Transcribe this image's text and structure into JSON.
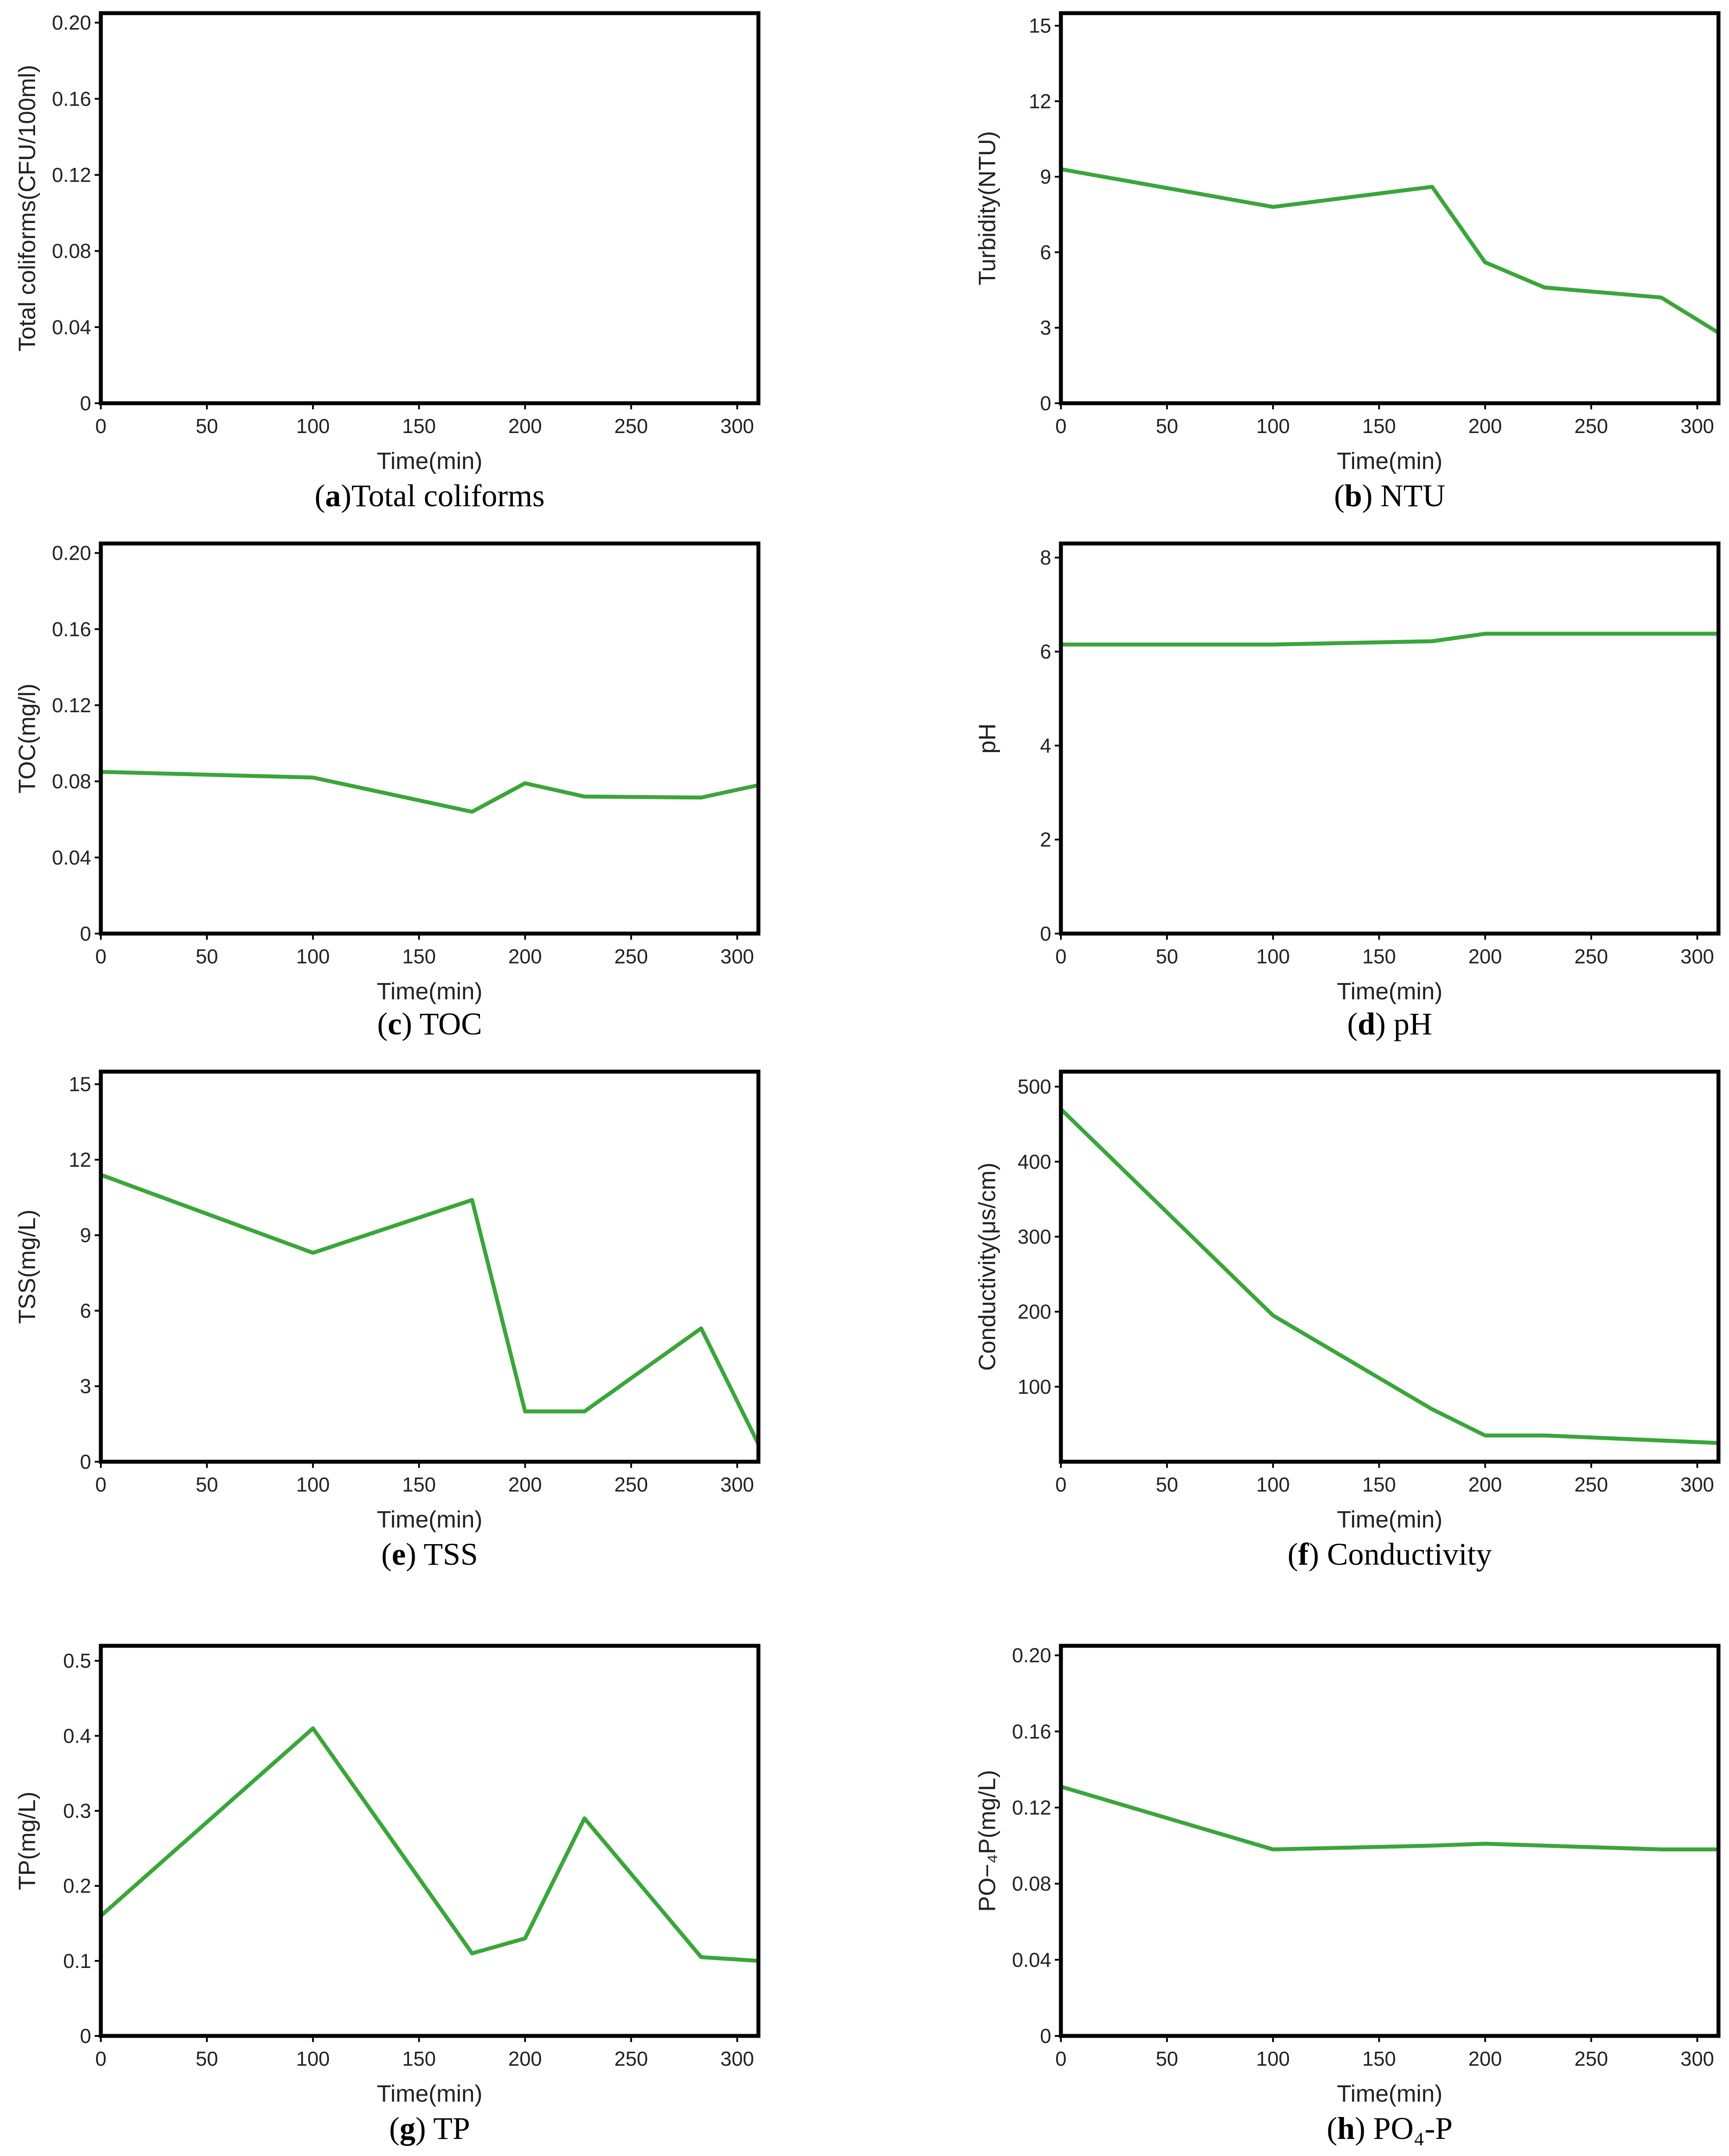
{
  "line_color": "#3aa63a",
  "chart_data": [
    {
      "id": "a",
      "type": "line",
      "caption_letter": "a",
      "caption_text": "Total coliforms",
      "xlabel": "Time(min)",
      "ylabel": "Total coliforms(CFU/100ml)",
      "xlim": [
        0,
        310
      ],
      "ylim": [
        0,
        0.205
      ],
      "xticks": [
        0,
        50,
        100,
        150,
        200,
        250,
        300
      ],
      "yticks": [
        "0",
        "0.04",
        "0.08",
        "0.12",
        "0.16",
        "0.20"
      ],
      "x": [
        0,
        100,
        175,
        200,
        228,
        283,
        310
      ],
      "y": [
        0,
        0,
        0,
        0,
        0,
        0,
        0
      ]
    },
    {
      "id": "b",
      "type": "line",
      "caption_letter": "b",
      "caption_text": " NTU",
      "xlabel": "Time(min)",
      "ylabel": "Turbidity(NTU)",
      "xlim": [
        0,
        310
      ],
      "ylim": [
        0,
        15.5
      ],
      "xticks": [
        0,
        50,
        100,
        150,
        200,
        250,
        300
      ],
      "yticks": [
        "0",
        "3",
        "6",
        "9",
        "12",
        "15"
      ],
      "x": [
        0,
        100,
        175,
        200,
        228,
        283,
        310
      ],
      "y": [
        9.3,
        7.8,
        8.6,
        5.6,
        4.6,
        4.2,
        2.8
      ]
    },
    {
      "id": "c",
      "type": "line",
      "caption_letter": "c",
      "caption_text": " TOC",
      "xlabel": "Time(min)",
      "ylabel": "TOC(mg/l)",
      "xlim": [
        0,
        310
      ],
      "ylim": [
        0,
        0.205
      ],
      "xticks": [
        0,
        50,
        100,
        150,
        200,
        250,
        300
      ],
      "yticks": [
        "0",
        "0.04",
        "0.08",
        "0.12",
        "0.16",
        "0.20"
      ],
      "x": [
        0,
        100,
        175,
        200,
        228,
        283,
        310
      ],
      "y": [
        0.085,
        0.082,
        0.064,
        0.079,
        0.072,
        0.0715,
        0.078
      ]
    },
    {
      "id": "d",
      "type": "line",
      "caption_letter": "d",
      "caption_text": " pH",
      "xlabel": "Time(min)",
      "ylabel": "pH",
      "xlim": [
        0,
        310
      ],
      "ylim": [
        0,
        8.3
      ],
      "xticks": [
        0,
        50,
        100,
        150,
        200,
        250,
        300
      ],
      "yticks": [
        "0",
        "2",
        "4",
        "6",
        "8"
      ],
      "x": [
        0,
        100,
        175,
        200,
        228,
        283,
        310
      ],
      "y": [
        6.15,
        6.15,
        6.22,
        6.38,
        6.38,
        6.38,
        6.38
      ]
    },
    {
      "id": "e",
      "type": "line",
      "caption_letter": "e",
      "caption_text": " TSS",
      "xlabel": "Time(min)",
      "ylabel": "TSS(mg/L)",
      "xlim": [
        0,
        310
      ],
      "ylim": [
        0,
        15.5
      ],
      "xticks": [
        0,
        50,
        100,
        150,
        200,
        250,
        300
      ],
      "yticks": [
        "0",
        "3",
        "6",
        "9",
        "12",
        "15"
      ],
      "x": [
        0,
        100,
        175,
        200,
        228,
        283,
        310
      ],
      "y": [
        11.4,
        8.3,
        10.4,
        2.0,
        2.0,
        5.3,
        0.7
      ]
    },
    {
      "id": "f",
      "type": "line",
      "caption_letter": "f",
      "caption_text": " Conductivity",
      "xlabel": "Time(min)",
      "ylabel": "Conductivity(μs/cm)",
      "xlim": [
        0,
        310
      ],
      "ylim": [
        0,
        520
      ],
      "xticks": [
        0,
        50,
        100,
        150,
        200,
        250,
        300
      ],
      "yticks": [
        "100",
        "200",
        "300",
        "400",
        "500"
      ],
      "x": [
        0,
        100,
        175,
        200,
        228,
        310
      ],
      "y": [
        470,
        195,
        70,
        35,
        35,
        25
      ]
    },
    {
      "id": "g",
      "type": "line",
      "caption_letter": "g",
      "caption_text": " TP",
      "xlabel": "Time(min)",
      "ylabel": "TP(mg/L)",
      "xlim": [
        0,
        310
      ],
      "ylim": [
        0,
        0.52
      ],
      "xticks": [
        0,
        50,
        100,
        150,
        200,
        250,
        300
      ],
      "yticks": [
        "0",
        "0.1",
        "0.2",
        "0.3",
        "0.4",
        "0.5"
      ],
      "x": [
        0,
        100,
        175,
        200,
        228,
        283,
        310
      ],
      "y": [
        0.16,
        0.41,
        0.11,
        0.13,
        0.29,
        0.105,
        0.1
      ]
    },
    {
      "id": "h",
      "type": "line",
      "caption_letter": "h",
      "caption_text": " PO₄-P",
      "xlabel": "Time(min)",
      "ylabel": "PO−₄P(mg/L)",
      "xlim": [
        0,
        310
      ],
      "ylim": [
        0,
        0.205
      ],
      "xticks": [
        0,
        50,
        100,
        150,
        200,
        250,
        300
      ],
      "yticks": [
        "0",
        "0.04",
        "0.08",
        "0.12",
        "0.16",
        "0.20"
      ],
      "x": [
        0,
        100,
        175,
        200,
        228,
        283,
        310
      ],
      "y": [
        0.131,
        0.098,
        0.1,
        0.101,
        0.1,
        0.098,
        0.098
      ]
    }
  ]
}
